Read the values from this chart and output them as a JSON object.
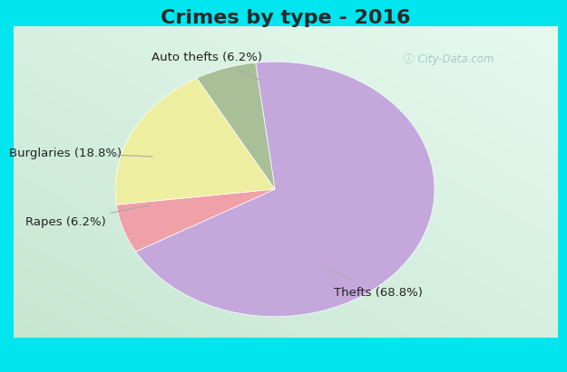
{
  "title": "Crimes by type - 2016",
  "slices": [
    {
      "label": "Thefts (68.8%)",
      "value": 68.8,
      "color": "#C4A8DC"
    },
    {
      "label": "Auto thefts (6.2%)",
      "value": 6.2,
      "color": "#F0A0A8"
    },
    {
      "label": "Burglaries (18.8%)",
      "value": 18.8,
      "color": "#EEEEA0"
    },
    {
      "label": "Rapes (6.2%)",
      "value": 6.2,
      "color": "#A8BF98"
    }
  ],
  "cyan_bar_color": "#00E5EE",
  "bg_color_top": "#C8EED8",
  "bg_color_bottom": "#D8F0E0",
  "title_fontsize": 16,
  "label_fontsize": 9.5,
  "watermark": "ⓘ City-Data.com",
  "startangle": 97
}
